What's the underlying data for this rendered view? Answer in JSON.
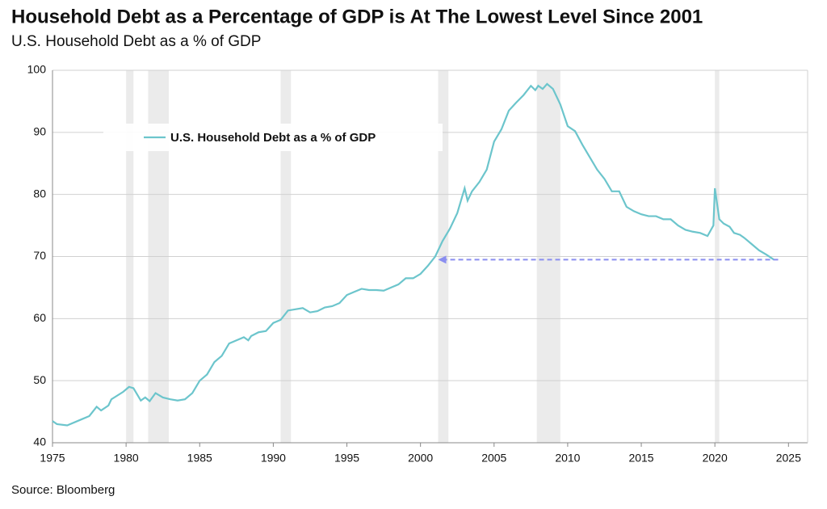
{
  "chart_data": {
    "type": "line",
    "title": "Household Debt as a Percentage of GDP is At The Lowest Level Since 2001",
    "subtitle": "U.S. Household Debt as a % of GDP",
    "source": "Source: Bloomberg",
    "xlim": [
      1975,
      2026.3
    ],
    "ylim": [
      40,
      100
    ],
    "xticks": [
      1975,
      1980,
      1985,
      1990,
      1995,
      2000,
      2005,
      2010,
      2015,
      2020,
      2025
    ],
    "yticks": [
      40,
      50,
      60,
      70,
      80,
      90,
      100
    ],
    "grid": true,
    "legend": "upper left",
    "recessions": [
      [
        1980.0,
        1980.5
      ],
      [
        1981.5,
        1982.9
      ],
      [
        1990.5,
        1991.2
      ],
      [
        2001.2,
        2001.9
      ],
      [
        2007.9,
        2009.5
      ],
      [
        2020.0,
        2020.3
      ]
    ],
    "arrow": {
      "x": [
        2024.3,
        2001.2
      ],
      "y": 69.5,
      "color": "#8a8ef0"
    },
    "x": [
      1975.0,
      1975.3,
      1976,
      1977,
      1977.5,
      1978,
      1978.3,
      1978.8,
      1979,
      1979.8,
      1980.2,
      1980.5,
      1981,
      1981.3,
      1981.6,
      1982,
      1982.5,
      1983,
      1983.5,
      1984,
      1984.5,
      1985,
      1985.5,
      1986,
      1986.5,
      1987,
      1987.5,
      1988,
      1988.3,
      1988.5,
      1989,
      1989.5,
      1990,
      1990.5,
      1991,
      1991.5,
      1992,
      1992.5,
      1993,
      1993.5,
      1994,
      1994.5,
      1995,
      1995.5,
      1996,
      1996.5,
      1997,
      1997.5,
      1998,
      1998.5,
      1999,
      1999.5,
      2000,
      2000.5,
      2001,
      2001.5,
      2002,
      2002.5,
      2003,
      2003.2,
      2003.5,
      2004,
      2004.5,
      2005,
      2005.5,
      2006,
      2006.5,
      2007,
      2007.5,
      2007.8,
      2008,
      2008.3,
      2008.6,
      2009,
      2009.5,
      2010,
      2010.5,
      2011,
      2011.5,
      2012,
      2012.5,
      2013,
      2013.5,
      2014,
      2014.5,
      2015,
      2015.5,
      2016,
      2016.5,
      2017,
      2017.5,
      2018,
      2018.5,
      2019,
      2019.5,
      2019.9,
      2020.0,
      2020.3,
      2020.6,
      2021,
      2021.3,
      2021.7,
      2022,
      2022.5,
      2023,
      2023.5,
      2024
    ],
    "series": [
      {
        "name": "U.S. Household Debt as a % of GDP",
        "color": "#6cc5cc",
        "values": [
          43.5,
          43.0,
          42.8,
          43.8,
          44.3,
          45.8,
          45.2,
          46.0,
          47.0,
          48.2,
          49.0,
          48.8,
          46.8,
          47.3,
          46.7,
          48.0,
          47.3,
          47.0,
          46.8,
          47.0,
          48.0,
          50.0,
          51.0,
          53.0,
          54.0,
          56.0,
          56.5,
          57.0,
          56.5,
          57.2,
          57.8,
          58.0,
          59.3,
          59.8,
          61.3,
          61.5,
          61.7,
          61.0,
          61.2,
          61.8,
          62.0,
          62.5,
          63.8,
          64.3,
          64.8,
          64.6,
          64.6,
          64.5,
          65.0,
          65.5,
          66.5,
          66.5,
          67.2,
          68.5,
          70.0,
          72.5,
          74.5,
          77.0,
          81.0,
          79.0,
          80.5,
          82.0,
          84.0,
          88.5,
          90.5,
          93.5,
          94.8,
          96.0,
          97.5,
          96.8,
          97.5,
          97.0,
          97.8,
          97.0,
          94.5,
          91.0,
          90.2,
          88.0,
          86.0,
          84.0,
          82.5,
          80.5,
          80.5,
          78.0,
          77.3,
          76.8,
          76.5,
          76.5,
          76.0,
          76.0,
          75.0,
          74.3,
          74.0,
          73.8,
          73.3,
          75.0,
          81.0,
          76.0,
          75.3,
          74.8,
          73.8,
          73.5,
          73.0,
          72.0,
          71.0,
          70.3,
          69.5
        ]
      }
    ]
  }
}
